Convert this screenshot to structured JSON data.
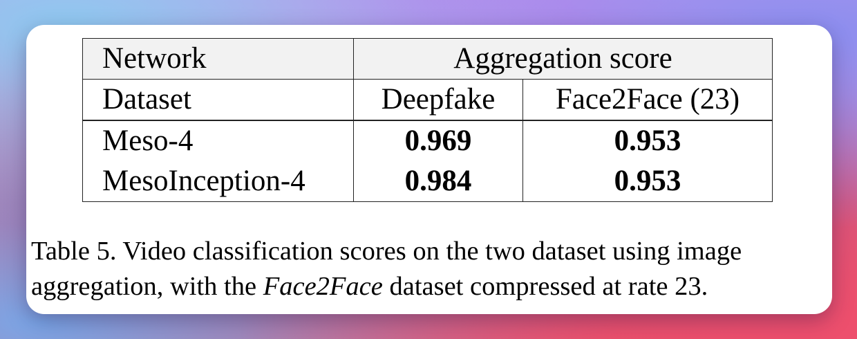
{
  "table": {
    "headers": {
      "network_label": "Network",
      "aggregation_label": "Aggregation score",
      "dataset_label": "Dataset",
      "datasets": [
        "Deepfake",
        "Face2Face (23)"
      ]
    },
    "rows": [
      {
        "network": "Meso-4",
        "deepfake": "0.969",
        "face2face": "0.953"
      },
      {
        "network": "MesoInception-4",
        "deepfake": "0.984",
        "face2face": "0.953"
      }
    ]
  },
  "caption": {
    "line1": "Table 5. Video classification scores on the two dataset using image",
    "line2_prefix": "aggregation, with the ",
    "line2_italic": "Face2Face",
    "line2_suffix": " dataset compressed at rate 23."
  }
}
